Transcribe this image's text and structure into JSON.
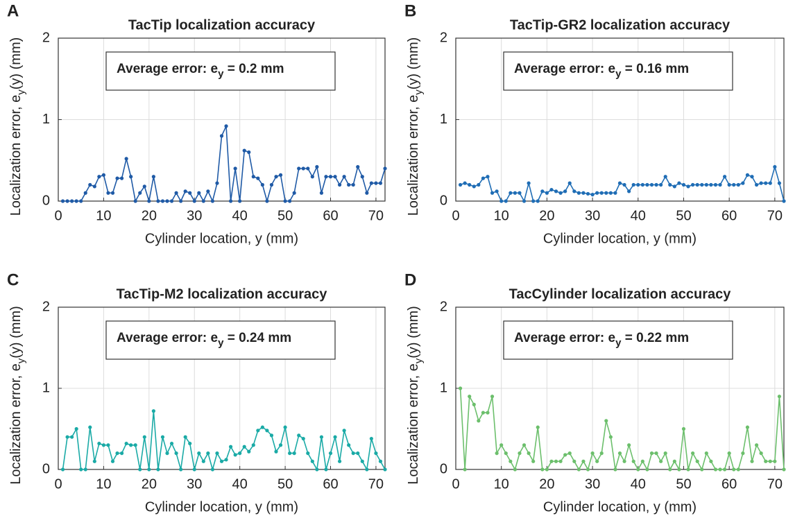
{
  "chart_data": [
    {
      "type": "line",
      "panel": "A",
      "title": "TacTip localization accuracy",
      "xlabel": "Cylinder location, y (mm)",
      "ylabel": [
        "Localization error, e",
        "y",
        "(y) (mm)"
      ],
      "annotation": [
        "Average error: e",
        "y",
        " = 0.2 mm"
      ],
      "xlim": [
        0,
        72
      ],
      "ylim": [
        0,
        2
      ],
      "xticks": [
        0,
        10,
        20,
        30,
        40,
        50,
        60,
        70
      ],
      "yticks": [
        0,
        1,
        2
      ],
      "grid": true,
      "x": [
        1,
        2,
        3,
        4,
        5,
        6,
        7,
        8,
        9,
        10,
        11,
        12,
        13,
        14,
        15,
        16,
        17,
        18,
        19,
        20,
        21,
        22,
        23,
        24,
        25,
        26,
        27,
        28,
        29,
        30,
        31,
        32,
        33,
        34,
        35,
        36,
        37,
        38,
        39,
        40,
        41,
        42,
        43,
        44,
        45,
        46,
        47,
        48,
        49,
        50,
        51,
        52,
        53,
        54,
        55,
        56,
        57,
        58,
        59,
        60,
        61,
        62,
        63,
        64,
        65,
        66,
        67,
        68,
        69,
        70,
        71,
        72
      ],
      "series": [
        {
          "color": "#1f5aa6",
          "values": [
            0,
            0,
            0,
            0,
            0,
            0.1,
            0.2,
            0.18,
            0.3,
            0.32,
            0.1,
            0.1,
            0.28,
            0.28,
            0.52,
            0.3,
            0,
            0.1,
            0.18,
            0,
            0.3,
            0,
            0,
            0,
            0,
            0.1,
            0,
            0.12,
            0.1,
            0,
            0.1,
            0,
            0.12,
            0,
            0.22,
            0.8,
            0.92,
            0,
            0.4,
            0,
            0.62,
            0.6,
            0.3,
            0.28,
            0.2,
            0,
            0.2,
            0.3,
            0.32,
            0,
            0,
            0.1,
            0.4,
            0.4,
            0.4,
            0.3,
            0.42,
            0.1,
            0.3,
            0.3,
            0.3,
            0.2,
            0.3,
            0.2,
            0.2,
            0.42,
            0.3,
            0.1,
            0.22,
            0.22,
            0.22,
            0.4
          ]
        }
      ]
    },
    {
      "type": "line",
      "panel": "B",
      "title": "TacTip-GR2 localization accuracy",
      "xlabel": "Cylinder location, y (mm)",
      "ylabel": [
        "Localization error, e",
        "y",
        "(y) (mm)"
      ],
      "annotation": [
        "Average error: e",
        "y",
        " = 0.16 mm"
      ],
      "xlim": [
        0,
        72
      ],
      "ylim": [
        0,
        2
      ],
      "xticks": [
        0,
        10,
        20,
        30,
        40,
        50,
        60,
        70
      ],
      "yticks": [
        0,
        1,
        2
      ],
      "grid": true,
      "x": [
        1,
        2,
        3,
        4,
        5,
        6,
        7,
        8,
        9,
        10,
        11,
        12,
        13,
        14,
        15,
        16,
        17,
        18,
        19,
        20,
        21,
        22,
        23,
        24,
        25,
        26,
        27,
        28,
        29,
        30,
        31,
        32,
        33,
        34,
        35,
        36,
        37,
        38,
        39,
        40,
        41,
        42,
        43,
        44,
        45,
        46,
        47,
        48,
        49,
        50,
        51,
        52,
        53,
        54,
        55,
        56,
        57,
        58,
        59,
        60,
        61,
        62,
        63,
        64,
        65,
        66,
        67,
        68,
        69,
        70,
        71,
        72
      ],
      "series": [
        {
          "color": "#1f6db5",
          "values": [
            0.2,
            0.22,
            0.2,
            0.18,
            0.2,
            0.28,
            0.3,
            0.1,
            0.12,
            0,
            0,
            0.1,
            0.1,
            0.1,
            0,
            0.22,
            0,
            0,
            0.12,
            0.1,
            0.14,
            0.12,
            0.1,
            0.12,
            0.22,
            0.12,
            0.1,
            0.1,
            0.09,
            0.08,
            0.1,
            0.1,
            0.1,
            0.1,
            0.1,
            0.22,
            0.2,
            0.12,
            0.2,
            0.2,
            0.2,
            0.2,
            0.2,
            0.2,
            0.2,
            0.3,
            0.2,
            0.18,
            0.22,
            0.2,
            0.18,
            0.2,
            0.2,
            0.2,
            0.2,
            0.2,
            0.2,
            0.2,
            0.3,
            0.2,
            0.2,
            0.2,
            0.22,
            0.32,
            0.3,
            0.2,
            0.22,
            0.22,
            0.22,
            0.42,
            0.22,
            0
          ]
        }
      ]
    },
    {
      "type": "line",
      "panel": "C",
      "title": "TacTip-M2 localization accuracy",
      "xlabel": "Cylinder location, y (mm)",
      "ylabel": [
        "Localization error, e",
        "y",
        "(y) (mm)"
      ],
      "annotation": [
        "Average error: e",
        "y",
        " = 0.24 mm"
      ],
      "xlim": [
        0,
        72
      ],
      "ylim": [
        0,
        2
      ],
      "xticks": [
        0,
        10,
        20,
        30,
        40,
        50,
        60,
        70
      ],
      "yticks": [
        0,
        1,
        2
      ],
      "grid": true,
      "x": [
        1,
        2,
        3,
        4,
        5,
        6,
        7,
        8,
        9,
        10,
        11,
        12,
        13,
        14,
        15,
        16,
        17,
        18,
        19,
        20,
        21,
        22,
        23,
        24,
        25,
        26,
        27,
        28,
        29,
        30,
        31,
        32,
        33,
        34,
        35,
        36,
        37,
        38,
        39,
        40,
        41,
        42,
        43,
        44,
        45,
        46,
        47,
        48,
        49,
        50,
        51,
        52,
        53,
        54,
        55,
        56,
        57,
        58,
        59,
        60,
        61,
        62,
        63,
        64,
        65,
        66,
        67,
        68,
        69,
        70,
        71,
        72
      ],
      "series": [
        {
          "color": "#1aaaa6",
          "values": [
            0,
            0.4,
            0.4,
            0.5,
            0,
            0,
            0.52,
            0.1,
            0.32,
            0.3,
            0.3,
            0.1,
            0.2,
            0.2,
            0.32,
            0.3,
            0.3,
            0,
            0.4,
            0,
            0.72,
            0,
            0.4,
            0.2,
            0.32,
            0.2,
            0,
            0.4,
            0.32,
            0,
            0.2,
            0.1,
            0.2,
            0,
            0.2,
            0.1,
            0.12,
            0.28,
            0.18,
            0.2,
            0.28,
            0.22,
            0.3,
            0.48,
            0.52,
            0.48,
            0.42,
            0.22,
            0.3,
            0.52,
            0.2,
            0.2,
            0.42,
            0.38,
            0.2,
            0.1,
            0,
            0.4,
            0,
            0.2,
            0.4,
            0.1,
            0.48,
            0.3,
            0.2,
            0.2,
            0.1,
            0,
            0.38,
            0.2,
            0.1,
            0
          ]
        }
      ]
    },
    {
      "type": "line",
      "panel": "D",
      "title": "TacCylinder localization accuracy",
      "xlabel": "Cylinder location, y (mm)",
      "ylabel": [
        "Localization error, e",
        "y",
        "(y) (mm)"
      ],
      "annotation": [
        "Average error: e",
        "y",
        " = 0.22 mm"
      ],
      "xlim": [
        0,
        72
      ],
      "ylim": [
        0,
        2
      ],
      "xticks": [
        0,
        10,
        20,
        30,
        40,
        50,
        60,
        70
      ],
      "yticks": [
        0,
        1,
        2
      ],
      "grid": true,
      "x": [
        1,
        2,
        3,
        4,
        5,
        6,
        7,
        8,
        9,
        10,
        11,
        12,
        13,
        14,
        15,
        16,
        17,
        18,
        19,
        20,
        21,
        22,
        23,
        24,
        25,
        26,
        27,
        28,
        29,
        30,
        31,
        32,
        33,
        34,
        35,
        36,
        37,
        38,
        39,
        40,
        41,
        42,
        43,
        44,
        45,
        46,
        47,
        48,
        49,
        50,
        51,
        52,
        53,
        54,
        55,
        56,
        57,
        58,
        59,
        60,
        61,
        62,
        63,
        64,
        65,
        66,
        67,
        68,
        69,
        70,
        71,
        72
      ],
      "series": [
        {
          "color": "#6cbf6c",
          "values": [
            1,
            0,
            0.9,
            0.8,
            0.6,
            0.7,
            0.7,
            0.9,
            0.2,
            0.3,
            0.2,
            0.1,
            0,
            0.2,
            0.3,
            0.2,
            0.1,
            0.52,
            0,
            0,
            0.1,
            0.1,
            0.1,
            0.18,
            0.2,
            0.1,
            0,
            0.1,
            0,
            0.2,
            0.1,
            0.2,
            0.6,
            0.4,
            0,
            0.2,
            0.1,
            0.3,
            0.1,
            0,
            0.1,
            0,
            0.2,
            0.2,
            0.1,
            0.2,
            0,
            0.1,
            0,
            0.5,
            0,
            0.2,
            0.1,
            0,
            0.2,
            0.1,
            0,
            0,
            0,
            0.2,
            0,
            0,
            0.2,
            0.52,
            0.1,
            0.3,
            0.2,
            0.1,
            0.1,
            0.1,
            0.9,
            0
          ]
        }
      ]
    }
  ]
}
